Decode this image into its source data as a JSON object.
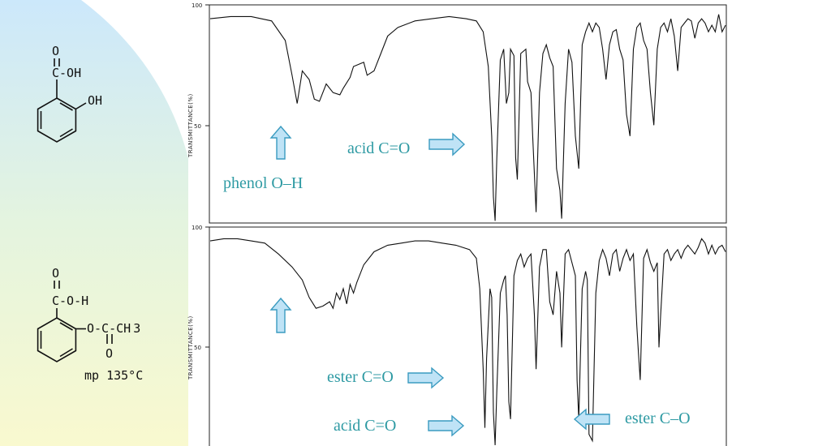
{
  "molecules": {
    "top": {
      "carbonyl_o": "O",
      "cooh_label": "C-OH",
      "oh_label": "OH"
    },
    "bottom": {
      "carbonyl_o": "O",
      "cooh_label": "C-O-H",
      "ester_label": "O-C-CH",
      "ester_sub": "3",
      "ester_o": "O",
      "mp": "mp 135°C"
    }
  },
  "annotations": {
    "top_acid": "acid C=O",
    "top_phenol": "phenol O–H",
    "bottom_ester_co": "ester C=O",
    "bottom_acid": "acid C=O",
    "bottom_ester_c_o": "ester C–O"
  },
  "chart_data": [
    {
      "type": "line",
      "title": "",
      "xlabel": "",
      "ylabel": "TRANSMITTANCE(%)",
      "ylim": [
        0,
        100
      ],
      "yticks": [
        "100",
        "50"
      ],
      "series": [
        {
          "points": [
            [
              0,
              94
            ],
            [
              6,
              95
            ],
            [
              12,
              95
            ],
            [
              18,
              93
            ],
            [
              22,
              84
            ],
            [
              24,
              68
            ],
            [
              25.5,
              55
            ],
            [
              27,
              70
            ],
            [
              29,
              66
            ],
            [
              30.5,
              57
            ],
            [
              32,
              56
            ],
            [
              34,
              64
            ],
            [
              36,
              60
            ],
            [
              38,
              59
            ],
            [
              39,
              62
            ],
            [
              41,
              67
            ],
            [
              42,
              72
            ],
            [
              45,
              74
            ],
            [
              46,
              68
            ],
            [
              48,
              70
            ],
            [
              50,
              78
            ],
            [
              52,
              86
            ],
            [
              55,
              90
            ],
            [
              60,
              93
            ],
            [
              65,
              94
            ],
            [
              70,
              95
            ],
            [
              75,
              94
            ],
            [
              78,
              93
            ],
            [
              80,
              88
            ],
            [
              81.5,
              72
            ],
            [
              82.5,
              40
            ],
            [
              83,
              12
            ],
            [
              83.5,
              1
            ],
            [
              84,
              30
            ],
            [
              85,
              75
            ],
            [
              86,
              80
            ],
            [
              86.8,
              55
            ],
            [
              87.5,
              60
            ],
            [
              88,
              80
            ],
            [
              89,
              77
            ],
            [
              89.5,
              30
            ],
            [
              90,
              20
            ],
            [
              91,
              78
            ],
            [
              92.5,
              80
            ],
            [
              93,
              65
            ],
            [
              94,
              60
            ],
            [
              94.5,
              40
            ],
            [
              95.5,
              5
            ],
            [
              96.5,
              60
            ],
            [
              97.5,
              78
            ],
            [
              98.5,
              82
            ],
            [
              99.5,
              76
            ],
            [
              100.5,
              72
            ],
            [
              101.5,
              25
            ],
            [
              102.5,
              15
            ],
            [
              103,
              2
            ],
            [
              104,
              55
            ],
            [
              105,
              80
            ],
            [
              106,
              74
            ],
            [
              107,
              40
            ],
            [
              108,
              25
            ],
            [
              109,
              82
            ],
            [
              110,
              88
            ],
            [
              111,
              92
            ],
            [
              112,
              88
            ],
            [
              113,
              92
            ],
            [
              114,
              90
            ],
            [
              115,
              80
            ],
            [
              116,
              66
            ],
            [
              117,
              82
            ],
            [
              118,
              88
            ],
            [
              119,
              89
            ],
            [
              120,
              80
            ],
            [
              121,
              75
            ],
            [
              122,
              50
            ],
            [
              123,
              40
            ],
            [
              124,
              80
            ],
            [
              125,
              90
            ],
            [
              126,
              92
            ],
            [
              127,
              84
            ],
            [
              128,
              80
            ],
            [
              129,
              60
            ],
            [
              130,
              45
            ],
            [
              131,
              80
            ],
            [
              132,
              90
            ],
            [
              133,
              92
            ],
            [
              134,
              88
            ],
            [
              135,
              94
            ],
            [
              136,
              86
            ],
            [
              137,
              70
            ],
            [
              138,
              90
            ],
            [
              139,
              92
            ],
            [
              140,
              94
            ],
            [
              141,
              93
            ],
            [
              142,
              85
            ],
            [
              143,
              92
            ],
            [
              144,
              94
            ],
            [
              145,
              92
            ],
            [
              146,
              88
            ],
            [
              147,
              91
            ],
            [
              148,
              88
            ],
            [
              149,
              96
            ],
            [
              150,
              88
            ],
            [
              151,
              91
            ]
          ]
        }
      ]
    },
    {
      "type": "line",
      "title": "",
      "xlabel": "",
      "ylabel": "TRANSMITTANCE(%)",
      "ylim": [
        0,
        100
      ],
      "yticks": [
        "100",
        "50"
      ],
      "series": [
        {
          "points": [
            [
              0,
              94
            ],
            [
              4,
              95
            ],
            [
              8,
              95
            ],
            [
              12,
              94
            ],
            [
              16,
              93
            ],
            [
              20,
              88
            ],
            [
              24,
              82
            ],
            [
              27,
              76
            ],
            [
              29,
              68
            ],
            [
              31,
              63
            ],
            [
              33,
              64
            ],
            [
              35,
              66
            ],
            [
              36,
              63
            ],
            [
              37,
              70
            ],
            [
              38,
              67
            ],
            [
              39,
              72
            ],
            [
              40,
              65
            ],
            [
              41,
              74
            ],
            [
              42,
              70
            ],
            [
              43,
              75
            ],
            [
              45,
              83
            ],
            [
              48,
              89
            ],
            [
              52,
              92
            ],
            [
              56,
              93
            ],
            [
              60,
              94
            ],
            [
              64,
              94
            ],
            [
              68,
              93
            ],
            [
              72,
              92
            ],
            [
              76,
              90
            ],
            [
              78,
              86
            ],
            [
              79,
              72
            ],
            [
              80,
              35
            ],
            [
              80.5,
              8
            ],
            [
              81,
              40
            ],
            [
              82,
              72
            ],
            [
              82.5,
              68
            ],
            [
              83,
              15
            ],
            [
              83.5,
              0
            ],
            [
              84,
              25
            ],
            [
              85,
              70
            ],
            [
              86,
              76
            ],
            [
              86.5,
              78
            ],
            [
              87,
              60
            ],
            [
              87.5,
              20
            ],
            [
              88,
              12
            ],
            [
              89,
              78
            ],
            [
              90,
              85
            ],
            [
              91,
              88
            ],
            [
              92,
              82
            ],
            [
              93,
              86
            ],
            [
              94,
              88
            ],
            [
              95,
              60
            ],
            [
              95.5,
              35
            ],
            [
              96.5,
              82
            ],
            [
              97.5,
              90
            ],
            [
              98.5,
              90
            ],
            [
              99.5,
              66
            ],
            [
              100.5,
              60
            ],
            [
              101.5,
              80
            ],
            [
              102.5,
              70
            ],
            [
              103,
              45
            ],
            [
              104,
              88
            ],
            [
              105,
              90
            ],
            [
              106,
              84
            ],
            [
              107,
              78
            ],
            [
              107.5,
              30
            ],
            [
              108,
              12
            ],
            [
              109,
              72
            ],
            [
              110,
              80
            ],
            [
              110.5,
              76
            ],
            [
              111,
              5
            ],
            [
              112,
              2
            ],
            [
              113,
              70
            ],
            [
              114,
              85
            ],
            [
              115,
              90
            ],
            [
              116,
              86
            ],
            [
              117,
              78
            ],
            [
              118,
              88
            ],
            [
              119,
              90
            ],
            [
              120,
              80
            ],
            [
              121,
              86
            ],
            [
              122,
              90
            ],
            [
              123,
              85
            ],
            [
              124,
              88
            ],
            [
              125,
              55
            ],
            [
              125.5,
              42
            ],
            [
              126,
              30
            ],
            [
              127,
              86
            ],
            [
              128,
              90
            ],
            [
              129,
              84
            ],
            [
              130,
              80
            ],
            [
              131,
              84
            ],
            [
              131.5,
              45
            ],
            [
              132,
              60
            ],
            [
              133,
              88
            ],
            [
              134,
              90
            ],
            [
              135,
              85
            ],
            [
              136,
              88
            ],
            [
              137,
              90
            ],
            [
              138,
              86
            ],
            [
              139,
              90
            ],
            [
              140,
              92
            ],
            [
              141,
              90
            ],
            [
              142,
              88
            ],
            [
              143,
              91
            ],
            [
              144,
              95
            ],
            [
              145,
              93
            ],
            [
              146,
              88
            ],
            [
              147,
              92
            ],
            [
              148,
              88
            ],
            [
              149,
              91
            ],
            [
              150,
              92
            ],
            [
              151,
              89
            ]
          ]
        }
      ]
    }
  ]
}
